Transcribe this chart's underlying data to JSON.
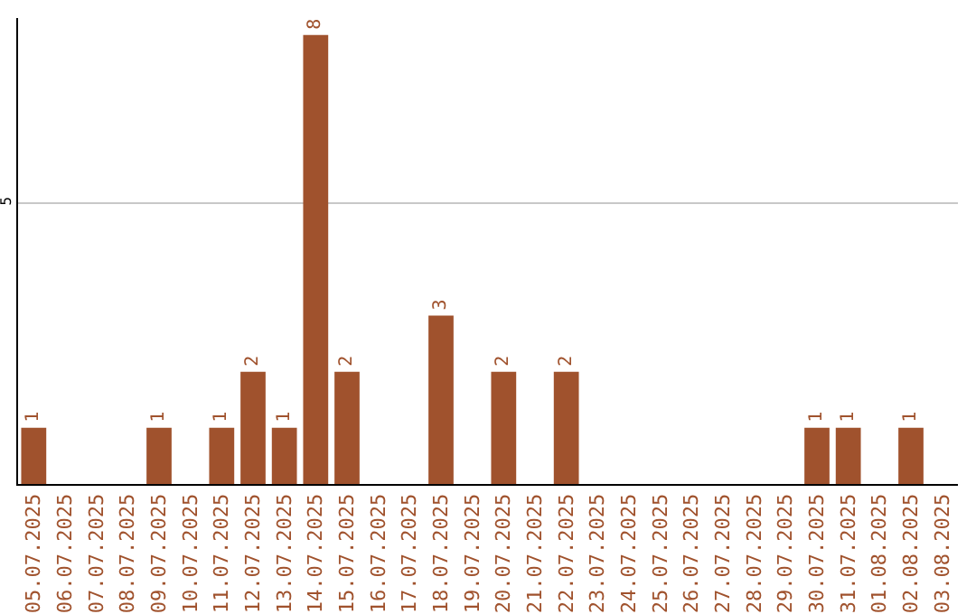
{
  "chart_data": {
    "type": "bar",
    "categories": [
      "05.07.2025",
      "06.07.2025",
      "07.07.2025",
      "08.07.2025",
      "09.07.2025",
      "10.07.2025",
      "11.07.2025",
      "12.07.2025",
      "13.07.2025",
      "14.07.2025",
      "15.07.2025",
      "16.07.2025",
      "17.07.2025",
      "18.07.2025",
      "19.07.2025",
      "20.07.2025",
      "21.07.2025",
      "22.07.2025",
      "23.07.2025",
      "24.07.2025",
      "25.07.2025",
      "26.07.2025",
      "27.07.2025",
      "28.07.2025",
      "29.07.2025",
      "30.07.2025",
      "31.07.2025",
      "01.08.2025",
      "02.08.2025",
      "03.08.2025"
    ],
    "values": [
      1,
      0,
      0,
      0,
      1,
      0,
      1,
      2,
      1,
      8,
      2,
      0,
      0,
      3,
      0,
      2,
      0,
      2,
      0,
      0,
      0,
      0,
      0,
      0,
      0,
      1,
      1,
      0,
      1,
      0
    ],
    "value_labels": [
      "1",
      null,
      null,
      null,
      "1",
      null,
      "1",
      "2",
      "1",
      "8",
      "2",
      null,
      null,
      "3",
      null,
      "2",
      null,
      "2",
      null,
      null,
      null,
      null,
      null,
      null,
      null,
      "1",
      "1",
      null,
      "1",
      null
    ],
    "color": "#a0522d",
    "ylim": [
      0,
      8.3
    ],
    "yticks": [
      5
    ],
    "grid": "y",
    "legend": false
  }
}
